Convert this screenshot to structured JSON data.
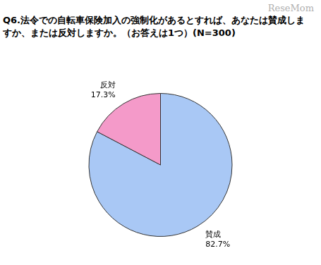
{
  "chart_data": {
    "type": "pie",
    "title": "Q6.法令での自転車保険加入の強制化があるとすれば、あなたは賛成しますか、または反対しますか。（お答えは1つ）(N=300)",
    "annotations": [
      "ReseMom"
    ],
    "categories": [
      "賛成",
      "反対"
    ],
    "values": [
      82.7,
      17.3
    ],
    "value_labels": [
      "82.7%",
      "17.3%"
    ],
    "colors": [
      "#a9c8f5",
      "#f49ac9"
    ],
    "data_labels": true
  }
}
